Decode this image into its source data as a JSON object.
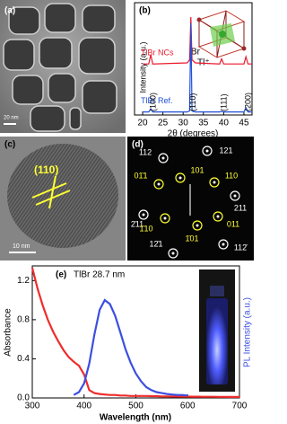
{
  "panels": {
    "a": {
      "label": "(a)",
      "scale": "20 nm"
    },
    "c": {
      "label": "(c)",
      "plane": "(110)",
      "scale": "10 nm"
    },
    "d": {
      "label": "(d)",
      "spots": [
        {
          "label": "112",
          "color": "#ffffff"
        },
        {
          "label": "121",
          "color": "#ffffff"
        },
        {
          "label": "101",
          "color": "#ffff33"
        },
        {
          "label": "110",
          "color": "#ffff33"
        },
        {
          "label": "01̄1",
          "color": "#ffff33"
        },
        {
          "label": "2̄11",
          "color": "#ffffff"
        },
        {
          "label": "211",
          "color": "#ffffff"
        },
        {
          "label": "011",
          "color": "#ffff33"
        },
        {
          "label": "1̄10",
          "color": "#ffff33"
        },
        {
          "label": "1̄01",
          "color": "#ffff33"
        },
        {
          "label": "12̄1",
          "color": "#ffffff"
        },
        {
          "label": "112̄",
          "color": "#ffffff"
        }
      ]
    }
  },
  "chart_data": [
    {
      "type": "line",
      "label": "(b)",
      "xlabel": "2θ (degrees)",
      "ylabel": "Intensity (a.u.)",
      "inset_labels": [
        "Br",
        "Tl⁺"
      ],
      "x": [
        20,
        21.5,
        22,
        22.5,
        31,
        31.6,
        31.9,
        32.2,
        33,
        39,
        39.5,
        40,
        45,
        45.5,
        46,
        47
      ],
      "series": [
        {
          "name": "TlBr NCs",
          "color": "#e8192c",
          "values": [
            5.0,
            5.0,
            5.9,
            5.0,
            5.1,
            5.4,
            9.6,
            5.4,
            5.1,
            5.0,
            5.5,
            5.0,
            5.0,
            5.7,
            5.0,
            5.0
          ]
        },
        {
          "name": "TlBr Ref.",
          "color": "#1f4fd8",
          "values": [
            0.3,
            0.3,
            0.6,
            0.3,
            0.3,
            0.4,
            9.0,
            0.4,
            0.3,
            0.3,
            0.35,
            0.3,
            0.3,
            0.7,
            0.3,
            0.3
          ]
        }
      ],
      "annotations": [
        {
          "text": "(100)",
          "x": 22
        },
        {
          "text": "(110)",
          "x": 31.9
        },
        {
          "text": "(111)",
          "x": 39.5
        },
        {
          "text": "(200)",
          "x": 45.5
        }
      ],
      "xlim": [
        18,
        47
      ],
      "xticks": [
        20,
        25,
        30,
        35,
        40,
        45
      ],
      "ylim": [
        0,
        11
      ]
    },
    {
      "type": "line",
      "label": "(e)",
      "title": "TlBr 28.7 nm",
      "xlabel": "Wavelength (nm)",
      "ylabel": "Absorbance",
      "y2label": "PL Intensity (a.u.)",
      "x": [
        300,
        310,
        320,
        330,
        340,
        350,
        360,
        370,
        380,
        390,
        400,
        410,
        420,
        430,
        440,
        450,
        460,
        470,
        480,
        490,
        500,
        510,
        520,
        530,
        540,
        550,
        560,
        570,
        580,
        590,
        600,
        610,
        620,
        630,
        640,
        650,
        660,
        670,
        680,
        690,
        700
      ],
      "series": [
        {
          "color": "#ef2b2b",
          "values": [
            1.33,
            1.12,
            0.95,
            0.8,
            0.68,
            0.58,
            0.49,
            0.42,
            0.37,
            0.33,
            0.24,
            0.08,
            0.05,
            0.04,
            0.035,
            0.03,
            0.03,
            0.025,
            0.025,
            0.02,
            0.02,
            0.02,
            0.02,
            0.018,
            0.018,
            0.016,
            0.016,
            0.015,
            0.015,
            0.014,
            0.014,
            0.013,
            0.013,
            0.012,
            0.012,
            0.012,
            0.011,
            0.011,
            0.01,
            0.01,
            0.01
          ]
        },
        {
          "color": "#3c4fe0",
          "axis": "y2",
          "values": [
            null,
            null,
            null,
            null,
            null,
            null,
            null,
            null,
            0.03,
            0.06,
            0.15,
            0.35,
            0.65,
            0.9,
            1.0,
            0.96,
            0.84,
            0.67,
            0.5,
            0.36,
            0.25,
            0.17,
            0.11,
            0.08,
            0.06,
            0.05,
            0.04,
            0.035,
            0.03,
            0.03,
            0.025,
            null,
            null,
            null,
            null,
            null,
            null,
            null,
            null,
            null,
            null
          ]
        }
      ],
      "xlim": [
        300,
        700
      ],
      "xticks": [
        300,
        400,
        500,
        600,
        700
      ],
      "ylim": [
        0,
        1.35
      ],
      "yticks": [
        {
          "value": 0,
          "label": "0.0"
        },
        {
          "value": 0.4,
          "label": "0.4"
        },
        {
          "value": 0.8,
          "label": "0.8"
        },
        {
          "value": 1.2,
          "label": "1.2"
        }
      ],
      "y2lim": [
        0,
        1.35
      ]
    }
  ]
}
